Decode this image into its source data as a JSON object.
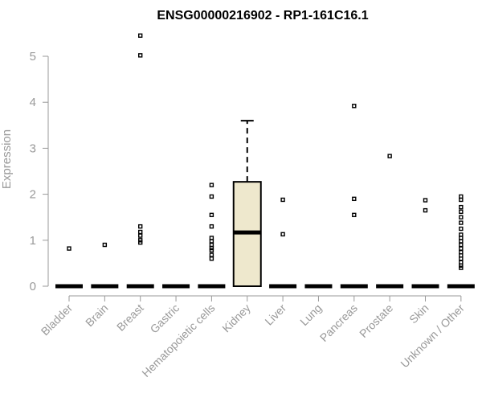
{
  "chart_data": {
    "type": "box",
    "title": "ENSG00000216902 - RP1-161C16.1",
    "xlabel": "",
    "ylabel": "Expression",
    "ylim": [
      0,
      5.5
    ],
    "yticks": [
      0,
      1,
      2,
      3,
      4,
      5
    ],
    "ytick_labels": [
      "0",
      "1",
      "2",
      "3",
      "4",
      "5"
    ],
    "grid": false,
    "legend": "none",
    "box_fill": "#EEE8CD",
    "categories": [
      "Bladder",
      "Brain",
      "Breast",
      "Gastric",
      "Hematopoietic cells",
      "Kidney",
      "Liver",
      "Lung",
      "Pancreas",
      "Prostate",
      "Skin",
      "Unknown / Other"
    ],
    "boxes": [
      {
        "category": "Bladder",
        "q1": 0,
        "median": 0,
        "q3": 0,
        "whisker_low": 0,
        "whisker_high": 0,
        "outliers": [
          0.82
        ]
      },
      {
        "category": "Brain",
        "q1": 0,
        "median": 0,
        "q3": 0,
        "whisker_low": 0,
        "whisker_high": 0,
        "outliers": [
          0.9
        ]
      },
      {
        "category": "Breast",
        "q1": 0,
        "median": 0,
        "q3": 0,
        "whisker_low": 0,
        "whisker_high": 0,
        "outliers": [
          5.45,
          5.02,
          1.3,
          1.18,
          1.1,
          1.0,
          0.95
        ]
      },
      {
        "category": "Gastric",
        "q1": 0,
        "median": 0,
        "q3": 0,
        "whisker_low": 0,
        "whisker_high": 0,
        "outliers": []
      },
      {
        "category": "Hematopoietic cells",
        "q1": 0,
        "median": 0,
        "q3": 0,
        "whisker_low": 0,
        "whisker_high": 0,
        "outliers": [
          2.2,
          1.95,
          1.55,
          1.3,
          1.05,
          0.98,
          0.9,
          0.83,
          0.78,
          0.68,
          0.6
        ]
      },
      {
        "category": "Kidney",
        "q1": 0,
        "median": 1.17,
        "q3": 2.27,
        "whisker_low": 0,
        "whisker_high": 3.6,
        "outliers": []
      },
      {
        "category": "Liver",
        "q1": 0,
        "median": 0,
        "q3": 0,
        "whisker_low": 0,
        "whisker_high": 0,
        "outliers": [
          1.88,
          1.13
        ]
      },
      {
        "category": "Lung",
        "q1": 0,
        "median": 0,
        "q3": 0,
        "whisker_low": 0,
        "whisker_high": 0,
        "outliers": []
      },
      {
        "category": "Pancreas",
        "q1": 0,
        "median": 0,
        "q3": 0,
        "whisker_low": 0,
        "whisker_high": 0,
        "outliers": [
          3.92,
          1.9,
          1.55
        ]
      },
      {
        "category": "Prostate",
        "q1": 0,
        "median": 0,
        "q3": 0,
        "whisker_low": 0,
        "whisker_high": 0,
        "outliers": [
          2.83
        ]
      },
      {
        "category": "Skin",
        "q1": 0,
        "median": 0,
        "q3": 0,
        "whisker_low": 0,
        "whisker_high": 0,
        "outliers": [
          1.87,
          1.65
        ]
      },
      {
        "category": "Unknown / Other",
        "q1": 0,
        "median": 0,
        "q3": 0,
        "whisker_low": 0,
        "whisker_high": 0,
        "outliers": [
          1.95,
          1.88,
          1.72,
          1.62,
          1.5,
          1.38,
          1.25,
          1.12,
          1.05,
          0.98,
          0.9,
          0.82,
          0.74,
          0.67,
          0.6,
          0.52,
          0.45,
          0.4
        ]
      }
    ]
  }
}
